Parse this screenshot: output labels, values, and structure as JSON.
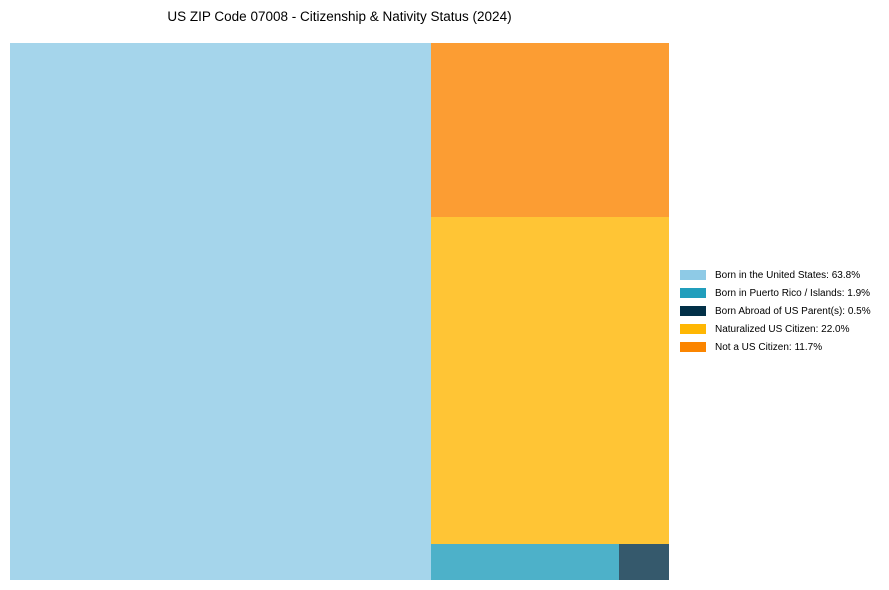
{
  "chart_data": {
    "type": "treemap",
    "title": "US ZIP Code 07008 - Citizenship & Nativity Status (2024)",
    "items": [
      {
        "label": "Born in the United States",
        "value": 63.8,
        "color": "#8ecae6",
        "legend": "Born in the United States: 63.8%"
      },
      {
        "label": "Born in Puerto Rico / Islands",
        "value": 1.9,
        "color": "#219ebc",
        "legend": "Born in Puerto Rico / Islands: 1.9%"
      },
      {
        "label": "Born Abroad of US Parent(s)",
        "value": 0.5,
        "color": "#023047",
        "legend": "Born Abroad of US Parent(s): 0.5%"
      },
      {
        "label": "Naturalized US Citizen",
        "value": 22.0,
        "color": "#ffb703",
        "legend": "Naturalized US Citizen: 22.0%"
      },
      {
        "label": "Not a US Citizen",
        "value": 11.7,
        "color": "#fb8500",
        "legend": "Not a US Citizen: 11.7%"
      }
    ],
    "tile_opacity": 0.8,
    "legend_position": "right"
  }
}
